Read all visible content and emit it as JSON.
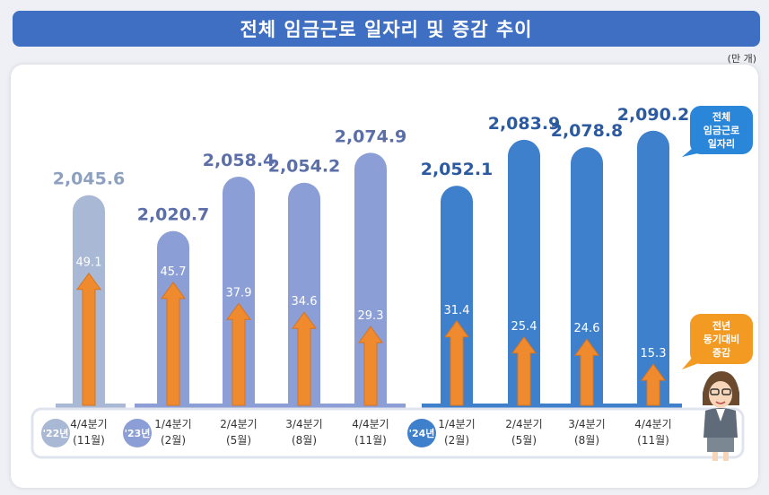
{
  "title": "전체 임금근로 일자리 및 증감 추이",
  "unit": "(만 개)",
  "legend": {
    "total_label_1": "전체",
    "total_label_2": "임금근로",
    "total_label_3": "일자리",
    "change_label_1": "전년",
    "change_label_2": "동기대비",
    "change_label_3": "증감"
  },
  "colors": {
    "y22": "#a9b8d4",
    "y23": "#8b9ed6",
    "y24": "#3f80cc",
    "arrow": "#ef8a2e",
    "total_text_22": "#8da0bf",
    "total_text_23": "#5b6ea8",
    "total_text_24": "#2c5aa0"
  },
  "chart_data": {
    "type": "bar",
    "years": [
      {
        "label": "'22년",
        "start_index": 0
      },
      {
        "label": "'23년",
        "start_index": 1
      },
      {
        "label": "'24년",
        "start_index": 5
      }
    ],
    "categories": [
      {
        "quarter": "4/4분기",
        "month": "(11월)"
      },
      {
        "quarter": "1/4분기",
        "month": "(2월)"
      },
      {
        "quarter": "2/4분기",
        "month": "(5월)"
      },
      {
        "quarter": "3/4분기",
        "month": "(8월)"
      },
      {
        "quarter": "4/4분기",
        "month": "(11월)"
      },
      {
        "quarter": "1/4분기",
        "month": "(2월)"
      },
      {
        "quarter": "2/4분기",
        "month": "(5월)"
      },
      {
        "quarter": "3/4분기",
        "month": "(8월)"
      },
      {
        "quarter": "4/4분기",
        "month": "(11월)"
      }
    ],
    "series": [
      {
        "name": "전체 임금근로 일자리",
        "values": [
          2045.6,
          2020.7,
          2058.4,
          2054.2,
          2074.9,
          2052.1,
          2083.9,
          2078.8,
          2090.2
        ]
      },
      {
        "name": "전년 동기대비 증감",
        "values": [
          49.1,
          45.7,
          37.9,
          34.6,
          29.3,
          31.4,
          25.4,
          24.6,
          15.3
        ]
      }
    ],
    "total_labels": [
      "2,045.6",
      "2,020.7",
      "2,058.4",
      "2,054.2",
      "2,074.9",
      "2,052.1",
      "2,083.9",
      "2,078.8",
      "2,090.2"
    ],
    "change_labels": [
      "49.1",
      "45.7",
      "37.9",
      "34.6",
      "29.3",
      "31.4",
      "25.4",
      "24.6",
      "15.3"
    ]
  }
}
